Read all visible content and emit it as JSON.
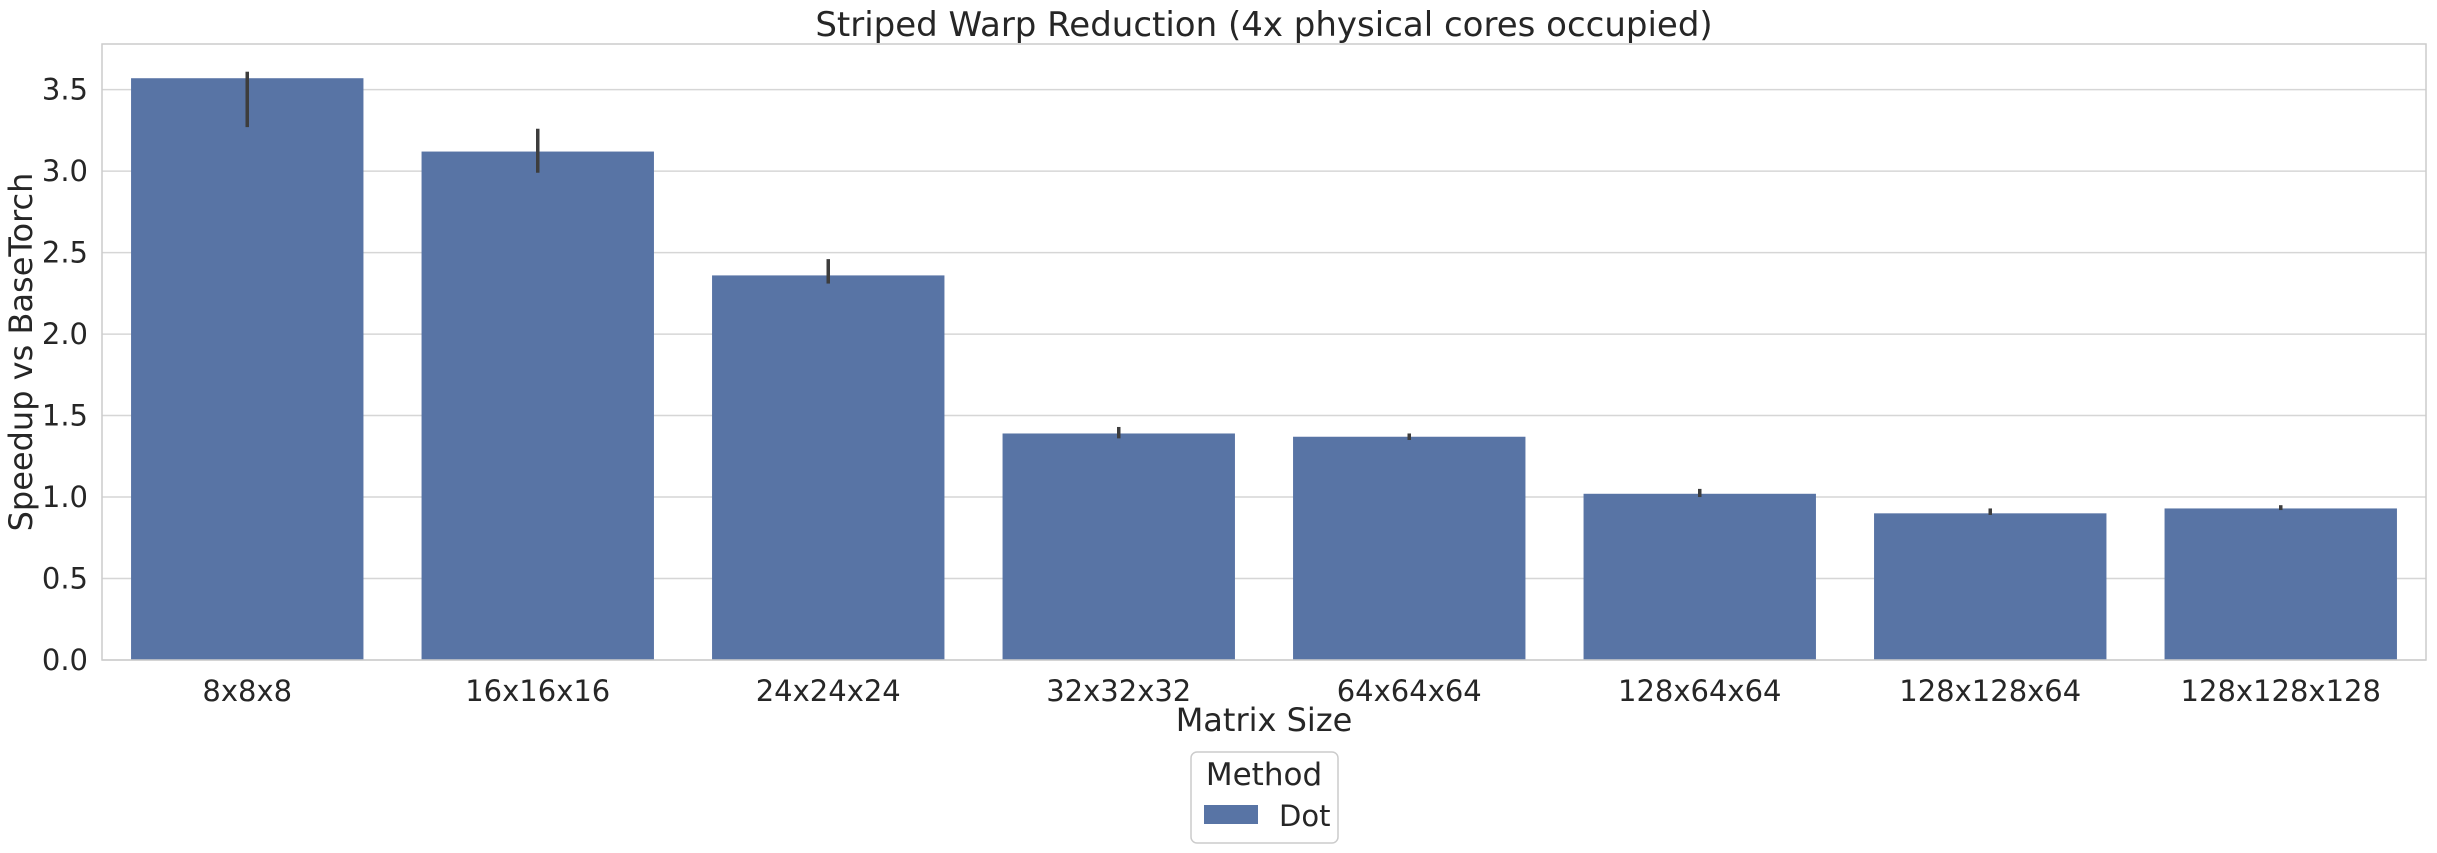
{
  "chart_data": {
    "type": "bar",
    "title": "Striped Warp Reduction (4x physical cores occupied)",
    "xlabel": "Matrix Size",
    "ylabel": "Speedup vs BaseTorch",
    "categories": [
      "8x8x8",
      "16x16x16",
      "24x24x24",
      "32x32x32",
      "64x64x64",
      "128x64x64",
      "128x128x64",
      "128x128x128"
    ],
    "series": [
      {
        "name": "Dot",
        "color": "#5874a5",
        "values": [
          3.57,
          3.12,
          2.36,
          1.39,
          1.37,
          1.02,
          0.9,
          0.93
        ],
        "error_low": [
          3.27,
          2.99,
          2.31,
          1.36,
          1.35,
          1.0,
          0.89,
          0.92
        ],
        "error_high": [
          3.61,
          3.26,
          2.46,
          1.43,
          1.39,
          1.05,
          0.93,
          0.95
        ]
      }
    ],
    "ylim": [
      0,
      3.78
    ],
    "yticks": [
      0.0,
      0.5,
      1.0,
      1.5,
      2.0,
      2.5,
      3.0,
      3.5
    ],
    "ytick_labels": [
      "0.0",
      "0.5",
      "1.0",
      "1.5",
      "2.0",
      "2.5",
      "3.0",
      "3.5"
    ],
    "grid": "horizontal",
    "legend": {
      "title": "Method",
      "placement": "below-center"
    }
  }
}
